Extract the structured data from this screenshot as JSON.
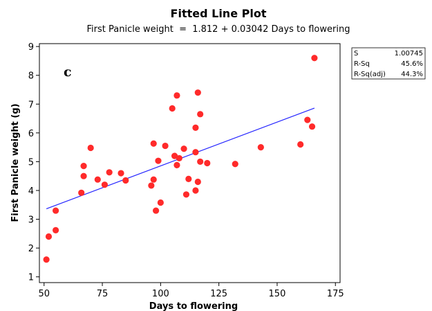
{
  "chart_data": {
    "type": "scatter",
    "title": "Fitted Line Plot",
    "subtitle": "First Panicle weight  =  1.812 + 0.03042 Days to flowering",
    "xlabel": "Days to flowering",
    "ylabel": "First Panicle weight (g)",
    "panel_label": "c",
    "xlim": [
      48,
      177
    ],
    "ylim": [
      0.8,
      9.1
    ],
    "xticks": [
      50,
      75,
      100,
      125,
      150,
      175
    ],
    "yticks": [
      1,
      2,
      3,
      4,
      5,
      6,
      7,
      8,
      9
    ],
    "grid": false,
    "point_color": "#ff2a2a",
    "line_color": "#2323ff",
    "fit": {
      "intercept": 1.812,
      "slope": 0.03042,
      "x_range": [
        51,
        166
      ]
    },
    "points": [
      [
        51,
        1.6
      ],
      [
        52,
        2.4
      ],
      [
        55,
        2.62
      ],
      [
        55,
        3.3
      ],
      [
        66,
        3.92
      ],
      [
        67,
        4.5
      ],
      [
        67,
        4.85
      ],
      [
        70,
        5.48
      ],
      [
        73,
        4.38
      ],
      [
        76,
        4.2
      ],
      [
        78,
        4.63
      ],
      [
        83,
        4.6
      ],
      [
        85,
        4.35
      ],
      [
        96,
        4.17
      ],
      [
        97,
        4.38
      ],
      [
        97,
        5.63
      ],
      [
        98,
        3.3
      ],
      [
        99,
        5.03
      ],
      [
        100,
        3.58
      ],
      [
        102,
        5.55
      ],
      [
        105,
        6.85
      ],
      [
        106,
        5.2
      ],
      [
        107,
        4.88
      ],
      [
        107,
        7.3
      ],
      [
        108,
        5.12
      ],
      [
        110,
        5.45
      ],
      [
        111,
        3.86
      ],
      [
        112,
        4.4
      ],
      [
        115,
        4.0
      ],
      [
        115,
        5.33
      ],
      [
        115,
        6.18
      ],
      [
        116,
        7.4
      ],
      [
        116,
        4.3
      ],
      [
        117,
        6.65
      ],
      [
        117,
        5.0
      ],
      [
        120,
        4.95
      ],
      [
        132,
        4.92
      ],
      [
        143,
        5.5
      ],
      [
        160,
        5.6
      ],
      [
        163,
        6.45
      ],
      [
        165,
        6.22
      ],
      [
        166,
        8.6
      ]
    ],
    "stats": [
      {
        "label": "S",
        "value": "1.00745"
      },
      {
        "label": "R-Sq",
        "value": "45.6%"
      },
      {
        "label": "R-Sq(adj)",
        "value": "44.3%"
      }
    ]
  }
}
